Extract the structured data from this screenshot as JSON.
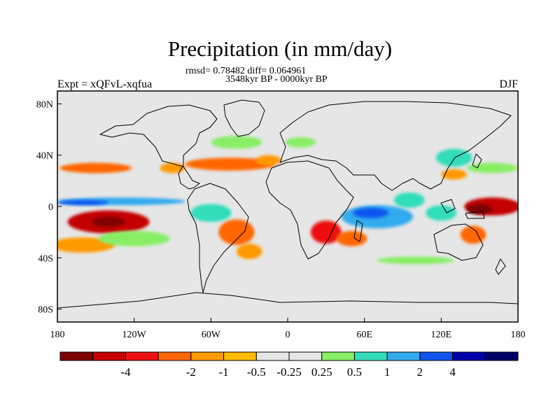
{
  "chart_data": {
    "type": "heatmap",
    "title": "Precipitation (in mm/day)",
    "subtitle_lines": [
      "rmsd= 0.78482 diff= 0.064961",
      "3548kyr BP - 0000kyr BP"
    ],
    "left_label": "Expt = xQFvL-xqfua",
    "right_label": "DJF",
    "x_ticks": [
      {
        "value": -180,
        "label": "180"
      },
      {
        "value": -120,
        "label": "120W"
      },
      {
        "value": -60,
        "label": "60W"
      },
      {
        "value": 0,
        "label": "0"
      },
      {
        "value": 60,
        "label": "60E"
      },
      {
        "value": 120,
        "label": "120E"
      },
      {
        "value": 180,
        "label": "180"
      }
    ],
    "y_ticks": [
      {
        "value": 80,
        "label": "80N"
      },
      {
        "value": 40,
        "label": "40N"
      },
      {
        "value": 0,
        "label": "0"
      },
      {
        "value": -40,
        "label": "40S"
      },
      {
        "value": -80,
        "label": "80S"
      }
    ],
    "xlim": [
      -180,
      180
    ],
    "ylim": [
      -90,
      90
    ],
    "colorbar": {
      "colors": [
        "#7f0000",
        "#c40000",
        "#ee1111",
        "#ff6600",
        "#ff9900",
        "#ffbb00",
        "#e6e6e6",
        "#e6e6e6",
        "#88ee66",
        "#33ddbb",
        "#33aaee",
        "#1155ee",
        "#0000aa",
        "#000066"
      ],
      "labels": [
        "-4",
        "-2",
        "-1",
        "-0.5",
        "-0.25",
        "0.25",
        "0.5",
        "1",
        "2",
        "4"
      ],
      "label_boxes": [
        1,
        3,
        4,
        5,
        6,
        7,
        8,
        9,
        10,
        11
      ]
    },
    "anomaly_regions": [
      {
        "name": "central-pacific-dry",
        "lon": -140,
        "lat": -12,
        "rlon": 32,
        "rlat": 9,
        "value": -4
      },
      {
        "name": "central-pacific-dry-core",
        "lon": -140,
        "lat": -12,
        "rlon": 13,
        "rlat": 4,
        "value": -6
      },
      {
        "name": "pacific-south-dry-band",
        "lon": -160,
        "lat": -30,
        "rlon": 25,
        "rlat": 6,
        "value": -0.5
      },
      {
        "name": "north-pacific-dry",
        "lon": -150,
        "lat": 30,
        "rlon": 28,
        "rlat": 4,
        "value": -1
      },
      {
        "name": "north-atlantic-dry",
        "lon": -45,
        "lat": 33,
        "rlon": 35,
        "rlat": 5,
        "value": -1
      },
      {
        "name": "north-atlantic-dry-east",
        "lon": -15,
        "lat": 36,
        "rlon": 10,
        "rlat": 4,
        "value": -0.5
      },
      {
        "name": "florida-dry",
        "lon": -90,
        "lat": 30,
        "rlon": 10,
        "rlat": 4,
        "value": -0.5
      },
      {
        "name": "south-america-dry",
        "lon": -40,
        "lat": -20,
        "rlon": 14,
        "rlat": 10,
        "value": -1
      },
      {
        "name": "south-atlantic-dry",
        "lon": -30,
        "lat": -35,
        "rlon": 10,
        "rlat": 6,
        "value": -0.5
      },
      {
        "name": "southern-africa-dry",
        "lon": 30,
        "lat": -20,
        "rlon": 12,
        "rlat": 9,
        "value": -2
      },
      {
        "name": "madagascar-dry",
        "lon": 50,
        "lat": -25,
        "rlon": 12,
        "rlat": 6,
        "value": -1
      },
      {
        "name": "west-pacific-dry",
        "lon": 160,
        "lat": 0,
        "rlon": 22,
        "rlat": 7,
        "value": -4
      },
      {
        "name": "west-pacific-dry-core",
        "lon": 150,
        "lat": -2,
        "rlon": 10,
        "rlat": 4,
        "value": -6
      },
      {
        "name": "australia-dry",
        "lon": 145,
        "lat": -22,
        "rlon": 10,
        "rlat": 7,
        "value": -1
      },
      {
        "name": "north-pacific-west-dry",
        "lon": 130,
        "lat": 25,
        "rlon": 10,
        "rlat": 4,
        "value": -0.5
      },
      {
        "name": "equatorial-pacific-wet",
        "lon": -130,
        "lat": 4,
        "rlon": 50,
        "rlat": 3,
        "value": 2
      },
      {
        "name": "equatorial-pacific-wet-core",
        "lon": -160,
        "lat": 3,
        "rlon": 20,
        "rlat": 2,
        "value": 4
      },
      {
        "name": "south-pacific-wet",
        "lon": -120,
        "lat": -25,
        "rlon": 28,
        "rlat": 6,
        "value": 0.5
      },
      {
        "name": "amazon-wet",
        "lon": -60,
        "lat": -5,
        "rlon": 16,
        "rlat": 7,
        "value": 1
      },
      {
        "name": "indian-ocean-wet",
        "lon": 70,
        "lat": -8,
        "rlon": 28,
        "rlat": 9,
        "value": 2
      },
      {
        "name": "indian-ocean-wet-core",
        "lon": 65,
        "lat": -5,
        "rlon": 14,
        "rlat": 4,
        "value": 4
      },
      {
        "name": "bay-of-bengal-wet",
        "lon": 95,
        "lat": 5,
        "rlon": 12,
        "rlat": 6,
        "value": 1
      },
      {
        "name": "maritime-wet",
        "lon": 120,
        "lat": -5,
        "rlon": 12,
        "rlat": 6,
        "value": 1
      },
      {
        "name": "east-asia-wet",
        "lon": 130,
        "lat": 38,
        "rlon": 14,
        "rlat": 7,
        "value": 1
      },
      {
        "name": "north-pacific-wet",
        "lon": 160,
        "lat": 30,
        "rlon": 20,
        "rlat": 4,
        "value": 0.5
      },
      {
        "name": "north-atlantic-wet",
        "lon": -40,
        "lat": 50,
        "rlon": 20,
        "rlat": 5,
        "value": 0.5
      },
      {
        "name": "europe-wet",
        "lon": 10,
        "lat": 50,
        "rlon": 12,
        "rlat": 4,
        "value": 0.5
      },
      {
        "name": "southern-ocean-wet",
        "lon": 100,
        "lat": -42,
        "rlon": 30,
        "rlat": 3,
        "value": 0.5
      }
    ]
  }
}
